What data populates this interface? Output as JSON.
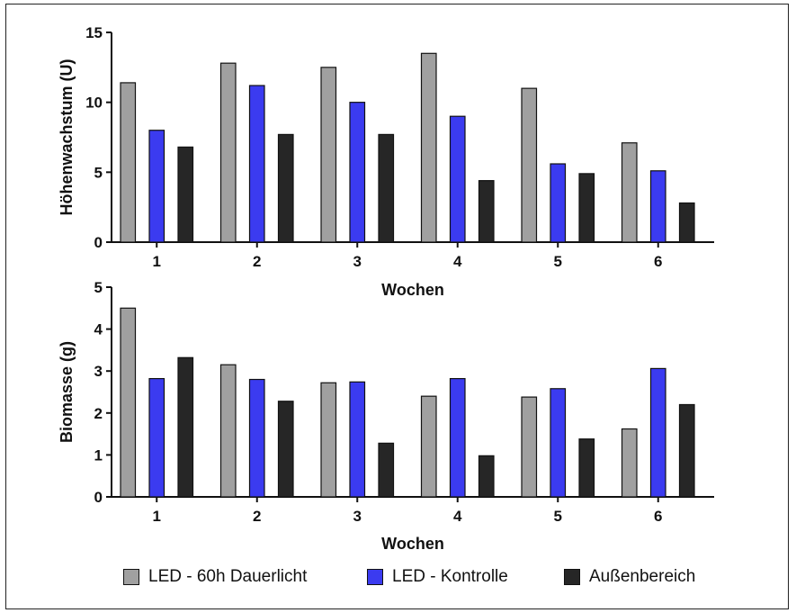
{
  "chart_data": [
    {
      "type": "bar",
      "categories": [
        "1",
        "2",
        "3",
        "4",
        "5",
        "6"
      ],
      "series": [
        {
          "name": "LED - 60h Dauerlicht",
          "values": [
            11.4,
            12.8,
            12.5,
            13.5,
            11.0,
            7.1
          ]
        },
        {
          "name": "LED - Kontrolle",
          "values": [
            8.0,
            11.2,
            10.0,
            9.0,
            5.6,
            5.1
          ]
        },
        {
          "name": "Außenbereich",
          "values": [
            6.8,
            7.7,
            7.7,
            4.4,
            4.9,
            2.8
          ]
        }
      ],
      "xlabel": "Wochen",
      "ylabel": "Höhenwachstum (U)",
      "ylim": [
        0,
        15
      ],
      "yticks": [
        "0",
        "5",
        "10",
        "15"
      ]
    },
    {
      "type": "bar",
      "categories": [
        "1",
        "2",
        "3",
        "4",
        "5",
        "6"
      ],
      "series": [
        {
          "name": "LED - 60h Dauerlicht",
          "values": [
            4.5,
            3.15,
            2.72,
            2.4,
            2.38,
            1.62
          ]
        },
        {
          "name": "LED - Kontrolle",
          "values": [
            2.82,
            2.8,
            2.74,
            2.82,
            2.58,
            3.06
          ]
        },
        {
          "name": "Außenbereich",
          "values": [
            3.32,
            2.28,
            1.28,
            0.98,
            1.38,
            2.2
          ]
        }
      ],
      "xlabel": "Wochen",
      "ylabel": "Biomasse (g)",
      "ylim": [
        0,
        5
      ],
      "yticks": [
        "0",
        "1",
        "2",
        "3",
        "4",
        "5"
      ]
    }
  ],
  "legend": [
    {
      "label": "LED - 60h Dauerlicht",
      "color": "#a0a0a0"
    },
    {
      "label": "LED - Kontrolle",
      "color": "#3b3bf0"
    },
    {
      "label": "Außenbereich",
      "color": "#262626"
    }
  ],
  "colors": [
    "#a0a0a0",
    "#3b3bf0",
    "#262626"
  ]
}
